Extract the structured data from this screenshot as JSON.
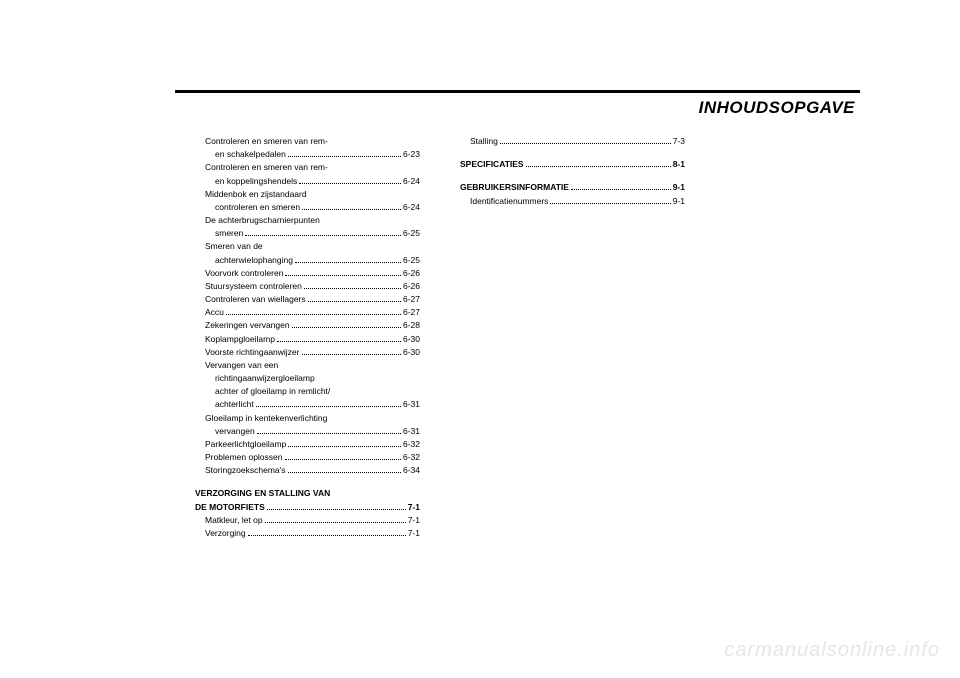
{
  "title": "INHOUDSOPGAVE",
  "watermark": "carmanualsonline.info",
  "col1": [
    {
      "label": "Controleren en smeren van rem-",
      "page": null,
      "indent": 1
    },
    {
      "label": "en schakelpedalen",
      "page": "6-23",
      "indent": 2
    },
    {
      "label": "Controleren en smeren van rem-",
      "page": null,
      "indent": 1
    },
    {
      "label": "en koppelingshendels",
      "page": "6-24",
      "indent": 2
    },
    {
      "label": "Middenbok en zijstandaard",
      "page": null,
      "indent": 1
    },
    {
      "label": "controleren en smeren",
      "page": "6-24",
      "indent": 2
    },
    {
      "label": "De achterbrugscharnierpunten",
      "page": null,
      "indent": 1
    },
    {
      "label": "smeren",
      "page": "6-25",
      "indent": 2
    },
    {
      "label": "Smeren van de",
      "page": null,
      "indent": 1
    },
    {
      "label": "achterwielophanging",
      "page": "6-25",
      "indent": 2
    },
    {
      "label": "Voorvork controleren",
      "page": "6-26",
      "indent": 1
    },
    {
      "label": "Stuursysteem controleren",
      "page": "6-26",
      "indent": 1
    },
    {
      "label": "Controleren van wiellagers",
      "page": "6-27",
      "indent": 1
    },
    {
      "label": "Accu",
      "page": "6-27",
      "indent": 1
    },
    {
      "label": "Zekeringen vervangen",
      "page": "6-28",
      "indent": 1
    },
    {
      "label": "Koplampgloeilamp",
      "page": "6-30",
      "indent": 1
    },
    {
      "label": "Voorste richtingaanwijzer",
      "page": "6-30",
      "indent": 1
    },
    {
      "label": "Vervangen van een",
      "page": null,
      "indent": 1
    },
    {
      "label": "richtingaanwijzergloeilamp",
      "page": null,
      "indent": 2
    },
    {
      "label": "achter of gloeilamp in remlicht/",
      "page": null,
      "indent": 2
    },
    {
      "label": "achterlicht",
      "page": "6-31",
      "indent": 2
    },
    {
      "label": "Gloeilamp in kentekenverlichting",
      "page": null,
      "indent": 1
    },
    {
      "label": "vervangen",
      "page": "6-31",
      "indent": 2
    },
    {
      "label": "Parkeerlichtgloeilamp",
      "page": "6-32",
      "indent": 1
    },
    {
      "label": "Problemen oplossen",
      "page": "6-32",
      "indent": 1
    },
    {
      "label": "Storingzoekschema's",
      "page": "6-34",
      "indent": 1
    },
    {
      "gap": true
    },
    {
      "label": "VERZORGING EN STALLING VAN",
      "page": null,
      "indent": 0,
      "bold": true
    },
    {
      "label": "DE MOTORFIETS",
      "page": "7-1",
      "indent": 0,
      "bold": true
    },
    {
      "label": "Matkleur, let op",
      "page": "7-1",
      "indent": 1
    },
    {
      "label": "Verzorging",
      "page": "7-1",
      "indent": 1
    }
  ],
  "col2": [
    {
      "label": "Stalling",
      "page": "7-3",
      "indent": 1
    },
    {
      "gap": true
    },
    {
      "label": "SPECIFICATIES",
      "page": "8-1",
      "indent": 0,
      "bold": true
    },
    {
      "gap": true
    },
    {
      "label": "GEBRUIKERSINFORMATIE",
      "page": "9-1",
      "indent": 0,
      "bold": true
    },
    {
      "label": "Identificatienummers",
      "page": "9-1",
      "indent": 1
    }
  ]
}
